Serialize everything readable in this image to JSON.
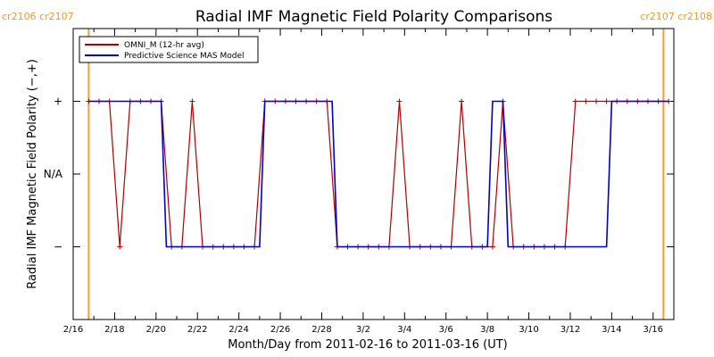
{
  "chart_data": {
    "type": "line",
    "title": "Radial IMF Magnetic Field Polarity Comparisons",
    "xlabel": "Month/Day from 2011-02-16 to 2011-03-16 (UT)",
    "ylabel": "Radial IMF Magnetic Field Polarity (−,+)",
    "xlim": [
      "2011-02-16T00",
      "2011-03-16T24"
    ],
    "ylim": [
      -2,
      2
    ],
    "x_ticks": [
      "2/16",
      "2/18",
      "2/20",
      "2/22",
      "2/24",
      "2/26",
      "2/28",
      "3/2",
      "3/4",
      "3/6",
      "3/8",
      "3/10",
      "3/12",
      "3/14",
      "3/16"
    ],
    "y_ticks": [
      {
        "value": 1,
        "label": "+"
      },
      {
        "value": 0,
        "label": "N/A"
      },
      {
        "value": -1,
        "label": "−"
      }
    ],
    "legend_position": "top-left",
    "carrington_markers": [
      {
        "date": "2011-02-16T18",
        "labels": [
          "cr2106",
          "cr2107"
        ]
      },
      {
        "date": "2011-03-16T12",
        "labels": [
          "cr2107",
          "cr2108"
        ]
      }
    ],
    "series": [
      {
        "name": "OMNI_M (12-hr avg)",
        "color": "#b00000",
        "markers": true,
        "points": [
          [
            "2011-02-16T18",
            1
          ],
          [
            "2011-02-17T06",
            1
          ],
          [
            "2011-02-17T18",
            1
          ],
          [
            "2011-02-18T06",
            -1
          ],
          [
            "2011-02-18T18",
            1
          ],
          [
            "2011-02-19T06",
            1
          ],
          [
            "2011-02-19T18",
            1
          ],
          [
            "2011-02-20T06",
            1
          ],
          [
            "2011-02-20T18",
            -1
          ],
          [
            "2011-02-21T06",
            -1
          ],
          [
            "2011-02-21T18",
            1
          ],
          [
            "2011-02-22T06",
            -1
          ],
          [
            "2011-02-22T18",
            -1
          ],
          [
            "2011-02-23T06",
            -1
          ],
          [
            "2011-02-23T18",
            -1
          ],
          [
            "2011-02-24T06",
            -1
          ],
          [
            "2011-02-24T18",
            -1
          ],
          [
            "2011-02-25T06",
            1
          ],
          [
            "2011-02-25T18",
            1
          ],
          [
            "2011-02-26T06",
            1
          ],
          [
            "2011-02-26T18",
            1
          ],
          [
            "2011-02-27T06",
            1
          ],
          [
            "2011-02-27T18",
            1
          ],
          [
            "2011-02-28T06",
            1
          ],
          [
            "2011-02-28T18",
            -1
          ],
          [
            "2011-03-01T06",
            -1
          ],
          [
            "2011-03-01T18",
            -1
          ],
          [
            "2011-03-02T06",
            -1
          ],
          [
            "2011-03-02T18",
            -1
          ],
          [
            "2011-03-03T06",
            -1
          ],
          [
            "2011-03-03T18",
            1
          ],
          [
            "2011-03-04T06",
            -1
          ],
          [
            "2011-03-04T18",
            -1
          ],
          [
            "2011-03-05T06",
            -1
          ],
          [
            "2011-03-05T18",
            -1
          ],
          [
            "2011-03-06T06",
            -1
          ],
          [
            "2011-03-06T18",
            1
          ],
          [
            "2011-03-07T06",
            -1
          ],
          [
            "2011-03-07T18",
            -1
          ],
          [
            "2011-03-08T06",
            -1
          ],
          [
            "2011-03-08T18",
            1
          ],
          [
            "2011-03-09T06",
            -1
          ],
          [
            "2011-03-09T18",
            -1
          ],
          [
            "2011-03-10T06",
            -1
          ],
          [
            "2011-03-10T18",
            -1
          ],
          [
            "2011-03-11T06",
            -1
          ],
          [
            "2011-03-11T18",
            -1
          ],
          [
            "2011-03-12T06",
            1
          ],
          [
            "2011-03-12T18",
            1
          ],
          [
            "2011-03-13T06",
            1
          ],
          [
            "2011-03-13T18",
            1
          ],
          [
            "2011-03-14T06",
            1
          ],
          [
            "2011-03-14T18",
            1
          ],
          [
            "2011-03-15T06",
            1
          ],
          [
            "2011-03-15T18",
            1
          ],
          [
            "2011-03-16T06",
            1
          ],
          [
            "2011-03-16T18",
            1
          ]
        ]
      },
      {
        "name": "Predictive Science MAS Model",
        "color": "#0000cc",
        "markers": false,
        "points": [
          [
            "2011-02-16T18",
            1
          ],
          [
            "2011-02-20T06",
            1
          ],
          [
            "2011-02-20T12",
            -1
          ],
          [
            "2011-02-25T00",
            -1
          ],
          [
            "2011-02-25T06",
            1
          ],
          [
            "2011-02-28T12",
            1
          ],
          [
            "2011-02-28T18",
            -1
          ],
          [
            "2011-03-08T00",
            -1
          ],
          [
            "2011-03-08T06",
            1
          ],
          [
            "2011-03-08T18",
            1
          ],
          [
            "2011-03-09T00",
            -1
          ],
          [
            "2011-03-13T18",
            -1
          ],
          [
            "2011-03-14T00",
            1
          ],
          [
            "2011-03-16T18",
            1
          ]
        ]
      }
    ]
  }
}
